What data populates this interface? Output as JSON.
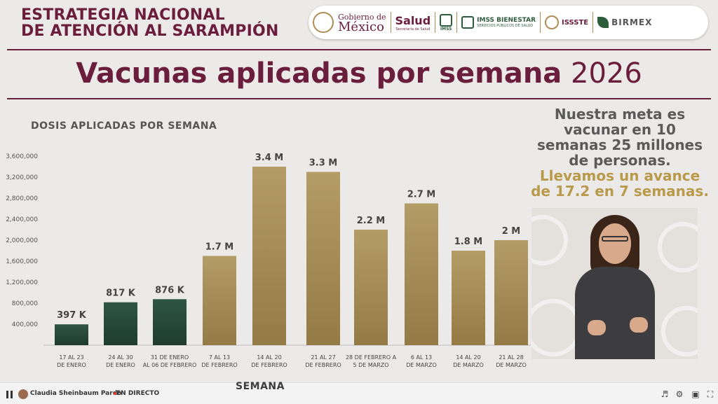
{
  "header": {
    "title_line1": "ESTRATEGIA NACIONAL",
    "title_line2": "DE ATENCIÓN AL SARAMPIÓN"
  },
  "logos": {
    "gobierno_line1": "Gobierno de",
    "gobierno_line2": "México",
    "salud": "Salud",
    "salud_sub": "Secretaría de Salud",
    "imss": "IMSS",
    "imss_bienestar": "IMSS BIENESTAR",
    "imss_bienestar_sub": "SERVICIOS PÚBLICOS DE SALUD",
    "issste": "ISSSTE",
    "birmex": "BIRMEX"
  },
  "main_title": {
    "bold": "Vacunas aplicadas por semana",
    "year": "2026"
  },
  "chart_title": "DOSIS APLICADAS POR SEMANA",
  "side_text": {
    "line1": "Nuestra meta es",
    "line2": "vacunar en 10",
    "line3": "semanas 25 millones",
    "line4": "de personas.",
    "line5": "Llevamos un avance",
    "line6": "de 17.2 en 7 semanas."
  },
  "colors": {
    "brand": "#6b1d3c",
    "accent": "#b99a4b",
    "bar_green": "#27483b",
    "bar_gold": "#a68d55"
  },
  "chart_data": {
    "type": "bar",
    "title": "DOSIS APLICADAS POR SEMANA",
    "xlabel": "SEMANA",
    "ylabel": "",
    "ylim": [
      0,
      3600000
    ],
    "yticks": [
      400000,
      800000,
      1200000,
      1600000,
      2000000,
      2400000,
      2800000,
      3200000,
      3600000
    ],
    "ytick_labels": [
      "400,000",
      "800,000",
      "1,200,000",
      "1,600,000",
      "2,000,000",
      "2,400,000",
      "2,800,000",
      "3,200,000",
      "3,600,000"
    ],
    "categories": [
      [
        "17 AL 23",
        "DE ENERO"
      ],
      [
        "24 AL 30",
        "DE ENERO"
      ],
      [
        "31 DE ENERO",
        "AL 06 DE FEBRERO"
      ],
      [
        "7 AL 13",
        "DE FEBRERO"
      ],
      [
        "14 AL 20",
        "DE FEBRERO"
      ],
      [
        "21 AL 27",
        "DE FEBRERO"
      ],
      [
        "28 DE FEBRERO A",
        "5 DE MARZO"
      ],
      [
        "6 AL 13",
        "DE MARZO"
      ],
      [
        "14 AL 20",
        "DE MARZO"
      ],
      [
        "21 AL 28",
        "DE MARZO"
      ]
    ],
    "values": [
      397000,
      817000,
      876000,
      1700000,
      3400000,
      3300000,
      2200000,
      2700000,
      1800000,
      2000000
    ],
    "data_labels": [
      "397 K",
      "817 K",
      "876 K",
      "1.7 M",
      "3.4 M",
      "3.3 M",
      "2.2 M",
      "2.7 M",
      "1.8 M",
      "2 M"
    ],
    "bar_style": [
      "green",
      "green",
      "green",
      "gold",
      "gold",
      "gold",
      "gold",
      "gold",
      "gold",
      "gold"
    ],
    "grid": false,
    "legend": "none"
  },
  "player": {
    "channel": "Claudia Sheinbaum Pardo",
    "live": "EN DIRECTO"
  }
}
